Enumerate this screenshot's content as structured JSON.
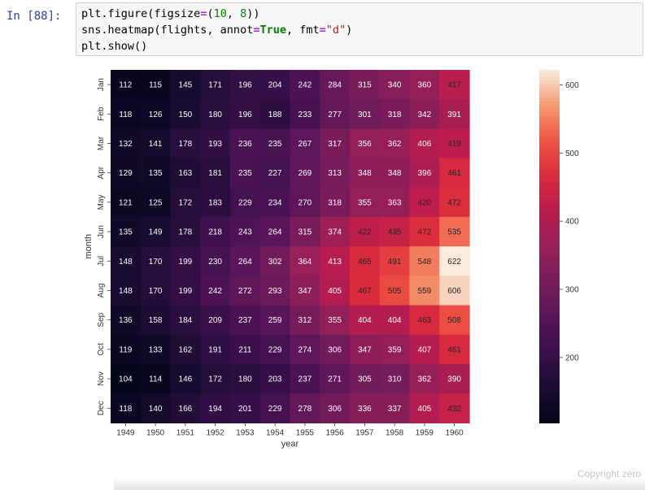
{
  "cell": {
    "prompt": "In [88]:",
    "lines": [
      [
        "plt.figure(figsize",
        "=",
        "(",
        "10",
        ", ",
        "8",
        "))"
      ],
      [
        "sns.heatmap(flights, annot",
        "=",
        "True",
        ", fmt",
        "=",
        "\"d\"",
        ")"
      ],
      [
        "plt.show()"
      ]
    ]
  },
  "watermark": "Copyright zero",
  "chart_data": {
    "type": "heatmap",
    "title": "",
    "xlabel": "year",
    "ylabel": "month",
    "x": [
      "1949",
      "1950",
      "1951",
      "1952",
      "1953",
      "1954",
      "1955",
      "1956",
      "1957",
      "1958",
      "1959",
      "1960"
    ],
    "y": [
      "Jan",
      "Feb",
      "Mar",
      "Apr",
      "May",
      "Jun",
      "Jul",
      "Aug",
      "Sep",
      "Oct",
      "Nov",
      "Dec"
    ],
    "values": [
      [
        112,
        115,
        145,
        171,
        196,
        204,
        242,
        284,
        315,
        340,
        360,
        417
      ],
      [
        118,
        126,
        150,
        180,
        196,
        188,
        233,
        277,
        301,
        318,
        342,
        391
      ],
      [
        132,
        141,
        178,
        193,
        236,
        235,
        267,
        317,
        356,
        362,
        406,
        419
      ],
      [
        129,
        135,
        163,
        181,
        235,
        227,
        269,
        313,
        348,
        348,
        396,
        461
      ],
      [
        121,
        125,
        172,
        183,
        229,
        234,
        270,
        318,
        355,
        363,
        420,
        472
      ],
      [
        135,
        149,
        178,
        218,
        243,
        264,
        315,
        374,
        422,
        435,
        472,
        535
      ],
      [
        148,
        170,
        199,
        230,
        264,
        302,
        364,
        413,
        465,
        491,
        548,
        622
      ],
      [
        148,
        170,
        199,
        242,
        272,
        293,
        347,
        405,
        467,
        505,
        559,
        606
      ],
      [
        136,
        158,
        184,
        209,
        237,
        259,
        312,
        355,
        404,
        404,
        463,
        508
      ],
      [
        119,
        133,
        162,
        191,
        211,
        229,
        274,
        306,
        347,
        359,
        407,
        461
      ],
      [
        104,
        114,
        146,
        172,
        180,
        203,
        237,
        271,
        305,
        310,
        362,
        390
      ],
      [
        118,
        140,
        166,
        194,
        201,
        229,
        278,
        306,
        336,
        337,
        405,
        432
      ]
    ],
    "vmin": 104,
    "vmax": 622,
    "colorbar_ticks": [
      200,
      300,
      400,
      500,
      600
    ],
    "colormap": "rocket",
    "annot": true
  }
}
